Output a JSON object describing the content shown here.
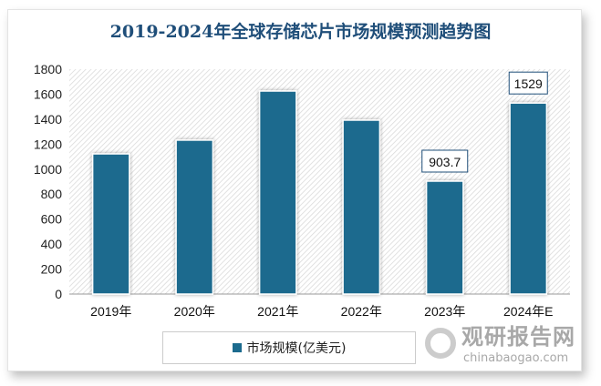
{
  "chart_data": {
    "type": "bar",
    "title": "2019-2024年全球存储芯片市场规模预测趋势图",
    "categories": [
      "2019年",
      "2020年",
      "2021年",
      "2022年",
      "2023年",
      "2024年E"
    ],
    "series": [
      {
        "name": "市场规模(亿美元)",
        "values": [
          1122,
          1232,
          1625,
          1392,
          903.7,
          1529
        ]
      }
    ],
    "data_labels": [
      null,
      null,
      null,
      null,
      "903.7",
      "1529"
    ],
    "ylim": [
      0,
      1800
    ],
    "yticks": [
      0,
      200,
      400,
      600,
      800,
      1000,
      1200,
      1400,
      1600,
      1800
    ],
    "legend": "bottom",
    "bar_color": "#1c6b8e",
    "grid": false
  },
  "watermark": {
    "cn": "观研报告网",
    "en": "chinabaogao.com"
  }
}
